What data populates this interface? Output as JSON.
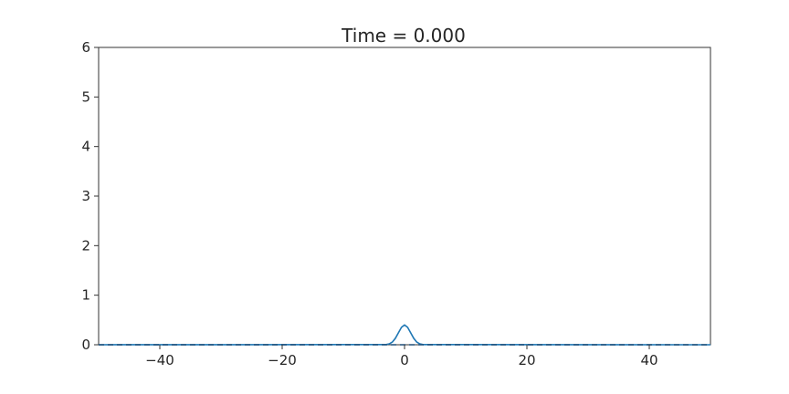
{
  "chart_data": {
    "type": "line",
    "title": "Time = 0.000",
    "xlabel": "",
    "ylabel": "",
    "xlim": [
      -50,
      50
    ],
    "ylim": [
      0,
      6
    ],
    "xticks": [
      -40,
      -20,
      0,
      20,
      40
    ],
    "xtick_labels": [
      "−40",
      "−20",
      "0",
      "20",
      "40"
    ],
    "yticks": [
      0,
      1,
      2,
      3,
      4,
      5,
      6
    ],
    "ytick_labels": [
      "0",
      "1",
      "2",
      "3",
      "4",
      "5",
      "6"
    ],
    "grid": false,
    "legend": "none",
    "series": [
      {
        "color": "#1f77b4",
        "style": "solid",
        "x": [
          -50,
          -3,
          -2.5,
          -2,
          -1.5,
          -1,
          -0.5,
          0,
          0.5,
          1,
          1.5,
          2,
          2.5,
          3,
          50
        ],
        "y": [
          0,
          0.004,
          0.018,
          0.054,
          0.13,
          0.242,
          0.352,
          0.399,
          0.352,
          0.242,
          0.13,
          0.054,
          0.018,
          0.004,
          0
        ]
      },
      {
        "color": "#1f4e79",
        "style": "dashed",
        "x": [
          -50,
          50
        ],
        "y": [
          0,
          0
        ]
      }
    ]
  }
}
